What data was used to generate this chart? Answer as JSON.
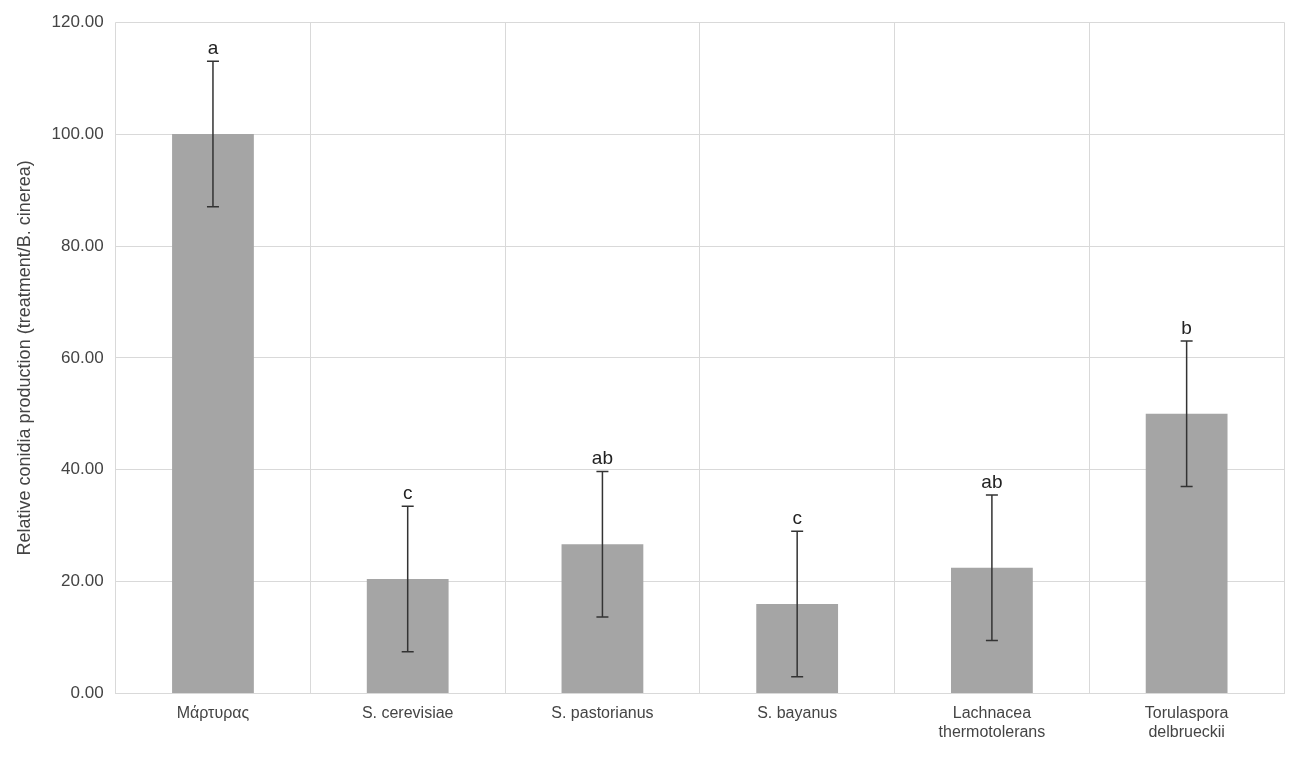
{
  "chart_data": {
    "type": "bar",
    "categories": [
      "Μάρτυρας",
      "S. cerevisiae",
      "S. pastorianus",
      "S. bayanus",
      "Lachnacea thermotolerans",
      "Torulaspora delbrueckii"
    ],
    "values": [
      100,
      20.5,
      26.7,
      16,
      22.5,
      50
    ],
    "errors": [
      13,
      13,
      13,
      13,
      13,
      13
    ],
    "color": "#a5a5a5",
    "ylabel": "Relative conidia production (treatment/B. cinerea)",
    "ylim": [
      0,
      120
    ],
    "yticks": [
      {
        "value": 0,
        "label": "0.00"
      },
      {
        "value": 20,
        "label": "20.00"
      },
      {
        "value": 40,
        "label": "40.00"
      },
      {
        "value": 60,
        "label": "60.00"
      },
      {
        "value": 80,
        "label": "80.00"
      },
      {
        "value": 100,
        "label": "100.00"
      },
      {
        "value": 120,
        "label": "120.00"
      }
    ],
    "grid": true,
    "annotations": [
      {
        "text": "a",
        "x": "Μάρτυρας",
        "y": 113
      },
      {
        "text": "c",
        "x": "S. cerevisiae",
        "y": 33.5
      },
      {
        "text": "ab",
        "x": "S. pastorianus",
        "y": 39.7
      },
      {
        "text": "c",
        "x": "S. bayanus",
        "y": 29
      },
      {
        "text": "ab",
        "x": "Lachnacea thermotolerans",
        "y": 35.5
      },
      {
        "text": "b",
        "x": "Torulaspora delbrueckii",
        "y": 63
      }
    ]
  }
}
